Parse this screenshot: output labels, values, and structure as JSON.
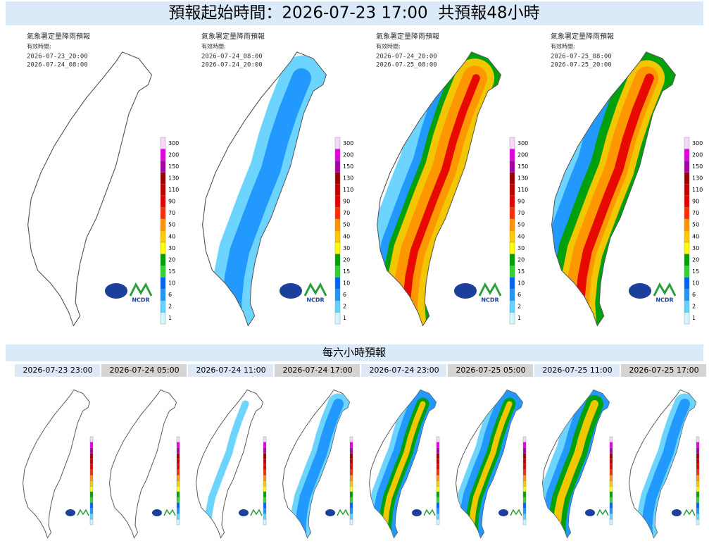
{
  "title": "預報起始時間：2026-07-23 17:00  共預報48小時",
  "panels": [
    {
      "heading": "氣象署定量降雨預報",
      "valid_label": "有效時間:",
      "start": "2026-07-23_20:00",
      "end": "2026-07-24_08:00"
    },
    {
      "heading": "氣象署定量降雨預報",
      "valid_label": "有效時間:",
      "start": "2026-07-24_08:00",
      "end": "2026-07-24_20:00"
    },
    {
      "heading": "氣象署定量降雨預報",
      "valid_label": "有效時間:",
      "start": "2026-07-24_20:00",
      "end": "2026-07-25_08:00"
    },
    {
      "heading": "氣象署定量降雨預報",
      "valid_label": "有效時間:",
      "start": "2026-07-25_08:00",
      "end": "2026-07-25_20:00"
    }
  ],
  "legend": [
    {
      "label": 300,
      "color": "#fbd5fb"
    },
    {
      "label": 200,
      "color": "#e600e6"
    },
    {
      "label": 150,
      "color": "#a600a6"
    },
    {
      "label": 130,
      "color": "#9a0000"
    },
    {
      "label": 110,
      "color": "#c10000"
    },
    {
      "label": 90,
      "color": "#e60000"
    },
    {
      "label": 70,
      "color": "#ff2d00"
    },
    {
      "label": 50,
      "color": "#ff9600"
    },
    {
      "label": 40,
      "color": "#ffc800"
    },
    {
      "label": 30,
      "color": "#ffff00"
    },
    {
      "label": 20,
      "color": "#00a000"
    },
    {
      "label": 15,
      "color": "#32d232"
    },
    {
      "label": 10,
      "color": "#0064ff"
    },
    {
      "label": 6,
      "color": "#1e96ff"
    },
    {
      "label": 2,
      "color": "#64d2ff"
    },
    {
      "label": 1,
      "color": "#d2f5ff"
    }
  ],
  "logo": "NCDR",
  "section_title": "每六小時預報",
  "six_hour": [
    "2026-07-23 23:00",
    "2026-07-24 05:00",
    "2026-07-24 11:00",
    "2026-07-24 17:00",
    "2026-07-24 23:00",
    "2026-07-25 05:00",
    "2026-07-25 11:00",
    "2026-07-25 17:00"
  ]
}
